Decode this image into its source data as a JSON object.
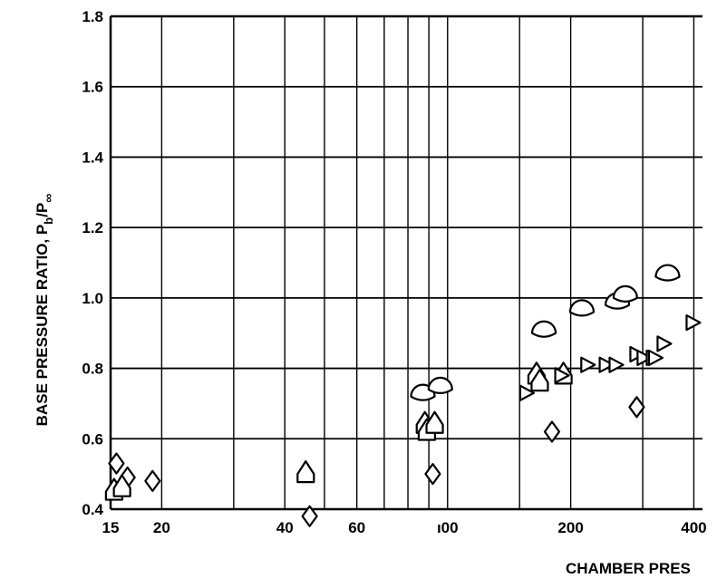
{
  "chart_data": {
    "type": "scatter",
    "title": "",
    "xlabel": "CHAMBER PRES",
    "ylabel": "BASE PRESSURE RATIO, P",
    "ylabel_sub": "b",
    "ylabel_tail": "/P",
    "ylabel_tail_sub": "∞",
    "x_scale": "log",
    "xlim": [
      15,
      420
    ],
    "ylim": [
      0.4,
      1.8
    ],
    "x_ticks": [
      15,
      20,
      40,
      60,
      100,
      200,
      400
    ],
    "x_tick_labels": [
      "15",
      "20",
      "40",
      "60",
      "ı00",
      "200",
      "400"
    ],
    "y_ticks": [
      0.4,
      0.6,
      0.8,
      1.0,
      1.2,
      1.4,
      1.6,
      1.8
    ],
    "y_tick_labels": [
      "0.4",
      "0.6",
      "0.8",
      "1.0",
      "1.2",
      "1.4",
      "1.6",
      "1.8"
    ],
    "x_gridlines": [
      15,
      20,
      30,
      40,
      50,
      60,
      70,
      80,
      90,
      100,
      150,
      200,
      300,
      400
    ],
    "grid": true,
    "legend": "none",
    "series": [
      {
        "marker": "diamond",
        "points": [
          [
            15.5,
            0.53
          ],
          [
            16.5,
            0.49
          ],
          [
            19,
            0.48
          ],
          [
            46,
            0.38
          ],
          [
            92,
            0.5
          ],
          [
            180,
            0.62
          ],
          [
            290,
            0.69
          ]
        ]
      },
      {
        "marker": "flag-triangle",
        "points": [
          [
            15.3,
            0.45
          ],
          [
            16,
            0.46
          ],
          [
            45,
            0.5
          ],
          [
            88,
            0.64
          ],
          [
            89,
            0.62
          ],
          [
            93,
            0.64
          ],
          [
            165,
            0.78
          ],
          [
            168,
            0.76
          ],
          [
            192,
            0.78
          ]
        ]
      },
      {
        "marker": "half-circle",
        "points": [
          [
            87,
            0.72
          ],
          [
            96,
            0.74
          ],
          [
            172,
            0.9
          ],
          [
            213,
            0.96
          ],
          [
            260,
            0.98
          ],
          [
            272,
            1.0
          ],
          [
            345,
            1.06
          ]
        ]
      },
      {
        "marker": "right-triangle",
        "points": [
          [
            156,
            0.73
          ],
          [
            190,
            0.78
          ],
          [
            220,
            0.81
          ],
          [
            244,
            0.81
          ],
          [
            258,
            0.81
          ],
          [
            290,
            0.84
          ],
          [
            302,
            0.83
          ],
          [
            318,
            0.83
          ],
          [
            322,
            0.83
          ],
          [
            338,
            0.87
          ],
          [
            398,
            0.93
          ]
        ]
      }
    ]
  }
}
